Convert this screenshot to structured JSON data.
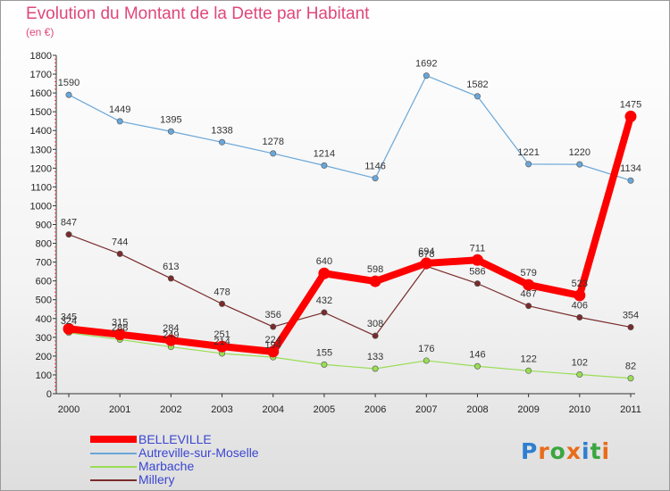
{
  "title": "Evolution du Montant de la Dette par Habitant",
  "subtitle": "(en €)",
  "logo_text": "Proxiti",
  "chart_data": {
    "type": "line",
    "title": "Evolution du Montant de la Dette par Habitant",
    "subtitle": "(en €)",
    "x": [
      "2000",
      "2001",
      "2002",
      "2003",
      "2004",
      "2005",
      "2006",
      "2007",
      "2008",
      "2009",
      "2010",
      "2011"
    ],
    "ylim": [
      0,
      1800
    ],
    "yticks": [
      0,
      100,
      200,
      300,
      400,
      500,
      600,
      700,
      800,
      900,
      1000,
      1100,
      1200,
      1300,
      1400,
      1500,
      1600,
      1700,
      1800
    ],
    "grid": false,
    "legend_position": "bottom-left",
    "series": [
      {
        "name": "BELLEVILLE",
        "color": "#ff0000",
        "values": [
          345,
          315,
          284,
          251,
          224,
          640,
          598,
          694,
          711,
          579,
          523,
          1475
        ]
      },
      {
        "name": "Autreville-sur-Moselle",
        "color": "#6aa7d8",
        "values": [
          1590,
          1449,
          1395,
          1338,
          1278,
          1214,
          1146,
          1692,
          1582,
          1221,
          1220,
          1134
        ]
      },
      {
        "name": "Marbache",
        "color": "#99dd55",
        "values": [
          324,
          288,
          249,
          214,
          194,
          155,
          133,
          176,
          146,
          122,
          102,
          82
        ]
      },
      {
        "name": "Millery",
        "color": "#7a2b2b",
        "values": [
          847,
          744,
          613,
          478,
          356,
          432,
          308,
          678,
          586,
          467,
          406,
          354
        ]
      }
    ]
  }
}
